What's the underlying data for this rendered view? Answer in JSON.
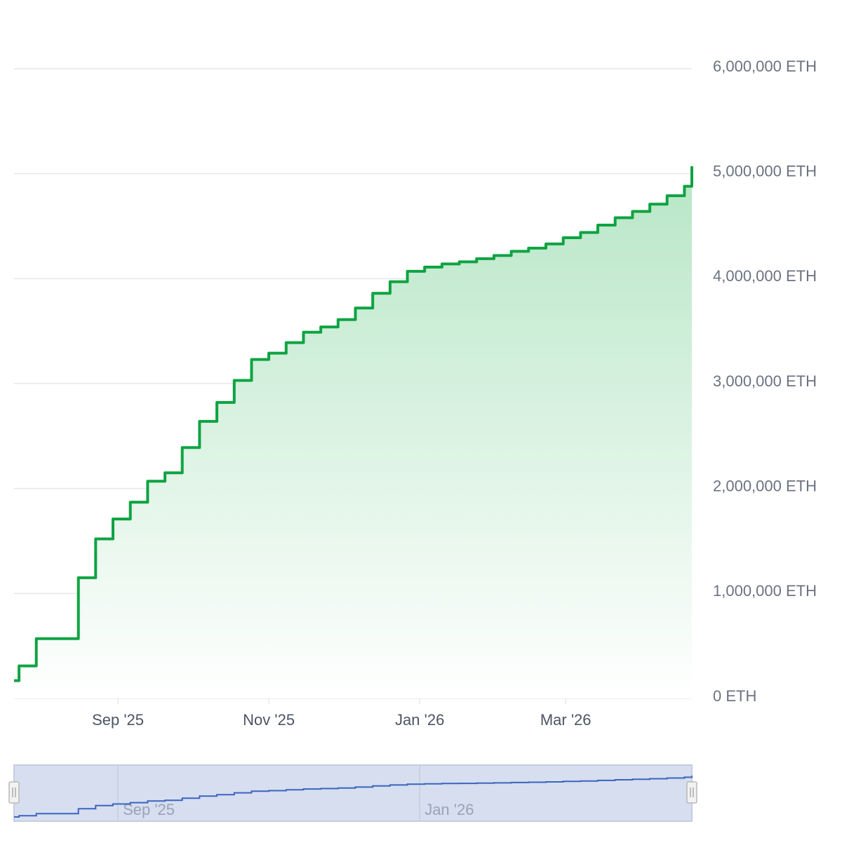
{
  "chart_data": {
    "type": "area",
    "step": true,
    "title": "",
    "xlabel": "",
    "ylabel": "",
    "unit": "ETH",
    "xlim": [
      "2025-07-21",
      "2026-04-21"
    ],
    "ylim": [
      0,
      6000000
    ],
    "yticks": [
      {
        "value": 0,
        "label": "0 ETH"
      },
      {
        "value": 1000000,
        "label": "1,000,000 ETH"
      },
      {
        "value": 2000000,
        "label": "2,000,000 ETH"
      },
      {
        "value": 3000000,
        "label": "3,000,000 ETH"
      },
      {
        "value": 4000000,
        "label": "4,000,000 ETH"
      },
      {
        "value": 5000000,
        "label": "5,000,000 ETH"
      },
      {
        "value": 6000000,
        "label": "6,000,000 ETH"
      }
    ],
    "xticks": [
      {
        "date": "2025-09-01",
        "label": "Sep '25"
      },
      {
        "date": "2025-11-01",
        "label": "Nov '25"
      },
      {
        "date": "2026-01-01",
        "label": "Jan '26"
      },
      {
        "date": "2026-03-01",
        "label": "Mar '26"
      }
    ],
    "grid": true,
    "colors": {
      "line": "#0ea342",
      "fill_top": "#b7e6c6",
      "fill_bottom": "#ffffff",
      "grid": "#e5e7eb",
      "navigator_fill": "#d6deef",
      "navigator_border": "#c5cde0",
      "navigator_line": "#3b64c0"
    },
    "series": [
      {
        "x": [
          "2025-07-21",
          "2025-07-23",
          "2025-07-30",
          "2025-08-16",
          "2025-08-23",
          "2025-08-30",
          "2025-09-06",
          "2025-09-13",
          "2025-09-20",
          "2025-09-27",
          "2025-10-04",
          "2025-10-11",
          "2025-10-18",
          "2025-10-25",
          "2025-11-01",
          "2025-11-08",
          "2025-11-15",
          "2025-11-22",
          "2025-11-29",
          "2025-12-06",
          "2025-12-13",
          "2025-12-20",
          "2025-12-27",
          "2026-01-03",
          "2026-01-10",
          "2026-01-17",
          "2026-01-24",
          "2026-01-31",
          "2026-02-07",
          "2026-02-14",
          "2026-02-21",
          "2026-02-28",
          "2026-03-07",
          "2026-03-14",
          "2026-03-21",
          "2026-03-28",
          "2026-04-04",
          "2026-04-11",
          "2026-04-18",
          "2026-04-21"
        ],
        "values": [
          170000,
          310000,
          570000,
          1150000,
          1520000,
          1710000,
          1870000,
          2070000,
          2150000,
          2390000,
          2640000,
          2820000,
          3030000,
          3230000,
          3290000,
          3390000,
          3490000,
          3540000,
          3610000,
          3720000,
          3860000,
          3970000,
          4070000,
          4110000,
          4140000,
          4160000,
          4190000,
          4220000,
          4260000,
          4290000,
          4330000,
          4390000,
          4440000,
          4510000,
          4580000,
          4640000,
          4710000,
          4790000,
          4880000,
          5060000
        ]
      }
    ]
  },
  "navigator": {
    "labels": [
      {
        "date": "2025-09-01",
        "label": "Sep '25"
      },
      {
        "date": "2026-01-01",
        "label": "Jan '26"
      }
    ]
  }
}
